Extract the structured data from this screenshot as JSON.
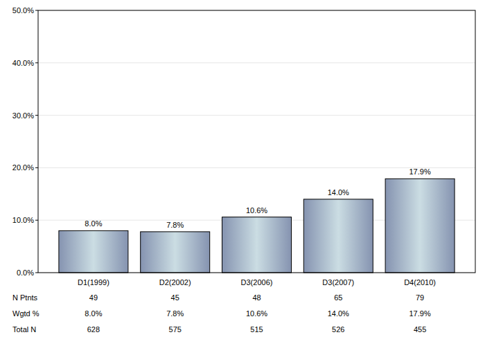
{
  "chart_data": {
    "type": "bar",
    "categories": [
      "D1(1999)",
      "D2(2002)",
      "D3(2006)",
      "D3(2007)",
      "D4(2010)"
    ],
    "values": [
      8.0,
      7.8,
      10.6,
      14.0,
      17.9
    ],
    "value_labels": [
      "8.0%",
      "7.8%",
      "10.6%",
      "14.0%",
      "17.9%"
    ],
    "data_labels": true,
    "color": "#a7b6cb",
    "ylim": [
      0,
      50
    ],
    "yticks": [
      {
        "value": 0,
        "label": "0.0%"
      },
      {
        "value": 10,
        "label": "10.0%"
      },
      {
        "value": 20,
        "label": "20.0%"
      },
      {
        "value": 30,
        "label": "30.0%"
      },
      {
        "value": 40,
        "label": "40.0%"
      },
      {
        "value": 50,
        "label": "50.0%"
      }
    ],
    "grid": true,
    "table": {
      "rows": [
        {
          "label": "N Ptnts",
          "values": [
            49,
            45,
            48,
            65,
            79
          ]
        },
        {
          "label": "Wgtd %",
          "values": [
            "8.0%",
            "7.8%",
            "10.6%",
            "14.0%",
            "17.9%"
          ]
        },
        {
          "label": "Total N",
          "values": [
            628,
            575,
            515,
            526,
            455
          ]
        }
      ]
    }
  }
}
